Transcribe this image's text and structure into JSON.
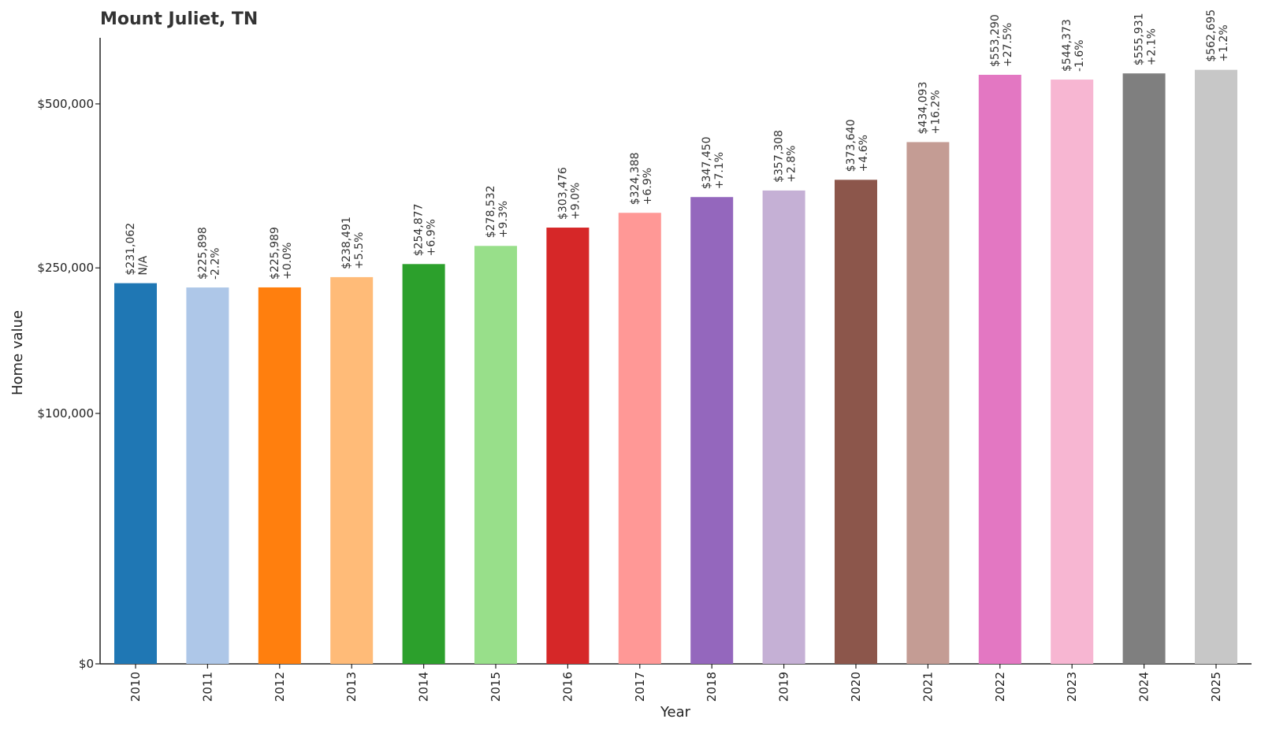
{
  "chart_data": {
    "type": "bar",
    "title": "Mount Juliet, TN",
    "xlabel": "Year",
    "ylabel": "Home value",
    "y_scale": "sqrt",
    "ylim": [
      0,
      625000
    ],
    "grid": false,
    "legend": "none",
    "y_ticks": [
      {
        "value": 0,
        "label": "$0"
      },
      {
        "value": 100000,
        "label": "$100,000"
      },
      {
        "value": 250000,
        "label": "$250,000"
      },
      {
        "value": 500000,
        "label": "$500,000"
      }
    ],
    "categories": [
      "2010",
      "2011",
      "2012",
      "2013",
      "2014",
      "2015",
      "2016",
      "2017",
      "2018",
      "2019",
      "2020",
      "2021",
      "2022",
      "2023",
      "2024",
      "2025"
    ],
    "values": [
      231062,
      225898,
      225989,
      238491,
      254877,
      278532,
      303476,
      324388,
      347450,
      357308,
      373640,
      434093,
      553290,
      544373,
      555931,
      562695
    ],
    "value_labels": [
      "$231,062",
      "$225,898",
      "$225,989",
      "$238,491",
      "$254,877",
      "$278,532",
      "$303,476",
      "$324,388",
      "$347,450",
      "$357,308",
      "$373,640",
      "$434,093",
      "$553,290",
      "$544,373",
      "$555,931",
      "$562,695"
    ],
    "change_labels": [
      "N/A",
      "-2.2%",
      "+0.0%",
      "+5.5%",
      "+6.9%",
      "+9.3%",
      "+9.0%",
      "+6.9%",
      "+7.1%",
      "+2.8%",
      "+4.6%",
      "+16.2%",
      "+27.5%",
      "-1.6%",
      "+2.1%",
      "+1.2%"
    ],
    "colors": [
      "#1f77b4",
      "#aec7e8",
      "#ff7f0e",
      "#ffbb78",
      "#2ca02c",
      "#98df8a",
      "#d62728",
      "#ff9896",
      "#9467bd",
      "#c5b0d5",
      "#8c564b",
      "#c49c94",
      "#e377c2",
      "#f7b6d2",
      "#7f7f7f",
      "#c7c7c7"
    ]
  }
}
